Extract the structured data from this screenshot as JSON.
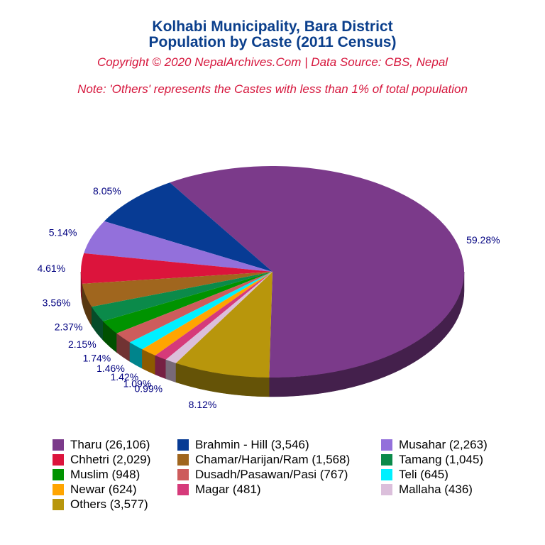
{
  "title_line1": "Kolhabi Municipality, Bara District",
  "title_line2": "Population by Caste (2011 Census)",
  "copyright": "Copyright © 2020 NepalArchives.Com | Data Source: CBS, Nepal",
  "note": "Note: 'Others' represents the Castes with less than 1% of total population",
  "chart_data": {
    "type": "pie",
    "title": "Kolhabi Municipality, Bara District Population by Caste (2011 Census)",
    "slices": [
      {
        "name": "Tharu",
        "value": 26106,
        "pct": "59.28%",
        "color": "#7b3a8a"
      },
      {
        "name": "Brahmin - Hill",
        "value": 3546,
        "pct": "8.05%",
        "color": "#073b94"
      },
      {
        "name": "Musahar",
        "value": 2263,
        "pct": "5.14%",
        "color": "#9370db"
      },
      {
        "name": "Chhetri",
        "value": 2029,
        "pct": "4.61%",
        "color": "#dc143c"
      },
      {
        "name": "Chamar/Harijan/Ram",
        "value": 1568,
        "pct": "3.56%",
        "color": "#a0661e"
      },
      {
        "name": "Tamang",
        "value": 1045,
        "pct": "2.37%",
        "color": "#0b8a4a"
      },
      {
        "name": "Muslim",
        "value": 948,
        "pct": "2.15%",
        "color": "#009300"
      },
      {
        "name": "Dusadh/Pasawan/Pasi",
        "value": 767,
        "pct": "1.74%",
        "color": "#cd5c5c"
      },
      {
        "name": "Teli",
        "value": 645,
        "pct": "1.46%",
        "color": "#00f0ff"
      },
      {
        "name": "Newar",
        "value": 624,
        "pct": "1.42%",
        "color": "#ffa500"
      },
      {
        "name": "Magar",
        "value": 481,
        "pct": "1.09%",
        "color": "#d63a7a"
      },
      {
        "name": "Mallaha",
        "value": 436,
        "pct": "0.99%",
        "color": "#dbbfdb"
      },
      {
        "name": "Others",
        "value": 3577,
        "pct": "8.12%",
        "color": "#b8960c"
      }
    ]
  },
  "legend": [
    {
      "label": "Tharu (26,106)",
      "color": "#7b3a8a"
    },
    {
      "label": "Brahmin - Hill (3,546)",
      "color": "#073b94"
    },
    {
      "label": "Musahar (2,263)",
      "color": "#9370db"
    },
    {
      "label": "Chhetri (2,029)",
      "color": "#dc143c"
    },
    {
      "label": "Chamar/Harijan/Ram (1,568)",
      "color": "#a0661e"
    },
    {
      "label": "Tamang (1,045)",
      "color": "#0b8a4a"
    },
    {
      "label": "Muslim (948)",
      "color": "#009300"
    },
    {
      "label": "Dusadh/Pasawan/Pasi (767)",
      "color": "#cd5c5c"
    },
    {
      "label": "Teli (645)",
      "color": "#00f0ff"
    },
    {
      "label": "Newar (624)",
      "color": "#ffa500"
    },
    {
      "label": "Magar (481)",
      "color": "#d63a7a"
    },
    {
      "label": "Mallaha (436)",
      "color": "#dbbfdb"
    },
    {
      "label": "Others (3,577)",
      "color": "#b8960c"
    }
  ]
}
